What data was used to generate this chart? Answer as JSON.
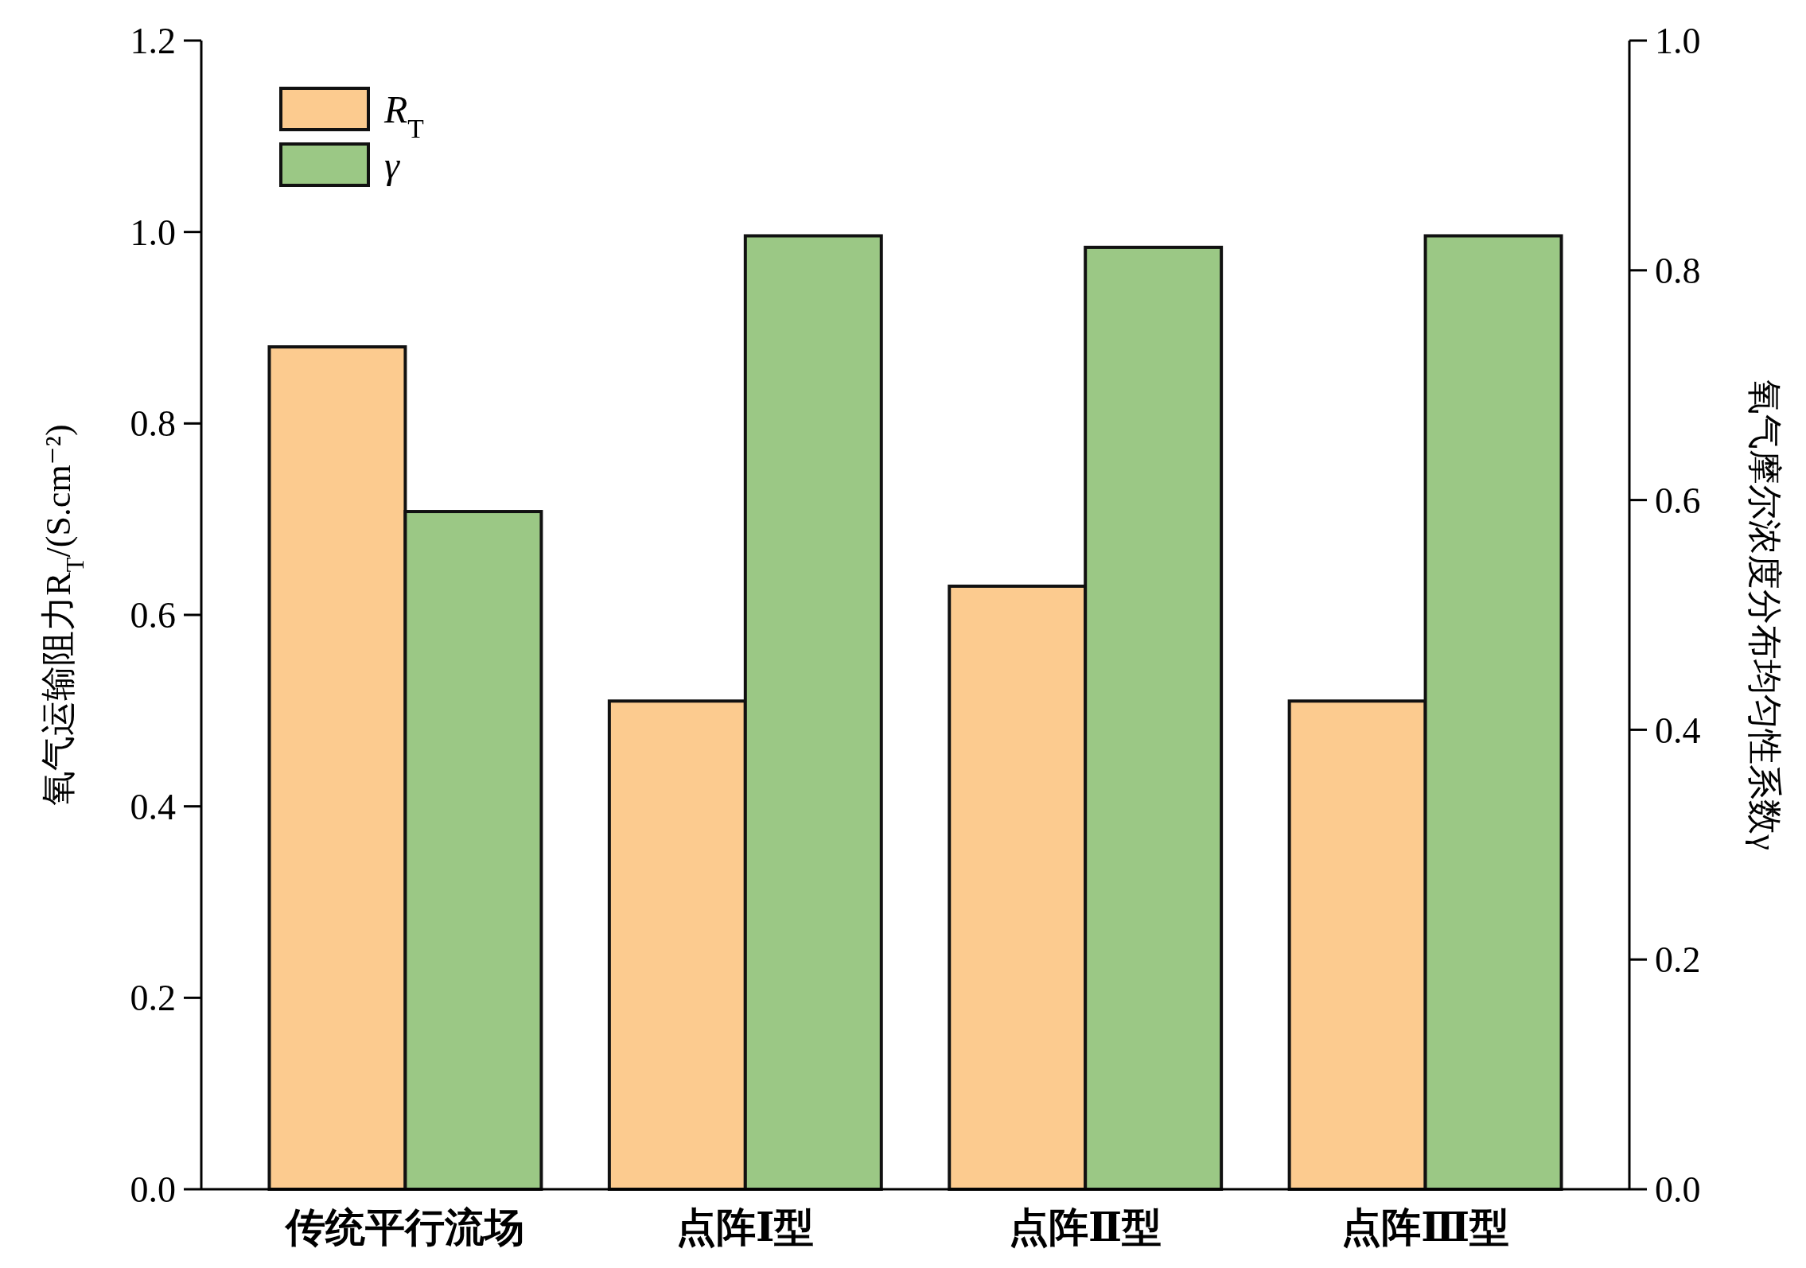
{
  "chart_data": {
    "type": "bar",
    "categories": [
      "传统平行流场",
      "点阵Ⅰ型",
      "点阵Ⅱ型",
      "点阵Ⅲ型"
    ],
    "ylabel": "氧气运输阻力R$_{T}$/(S.cm⁻²)",
    "y2label": "氧气摩尔浓度分布均匀性系数γ",
    "series": [
      {
        "name": "R$_{T}$",
        "color": "#fccb8f",
        "values": [
          0.88,
          0.51,
          0.63,
          0.51
        ]
      },
      {
        "name": "γ",
        "color": "#9bc885",
        "values": [
          0.59,
          0.83,
          0.82,
          0.83
        ],
        "axis": "y2"
      }
    ],
    "ylim": [
      0,
      1.2
    ],
    "yticks": [
      {
        "value": 0,
        "label": "0.0"
      },
      {
        "value": 0.2,
        "label": "0.2"
      },
      {
        "value": 0.4,
        "label": "0.4"
      },
      {
        "value": 0.6,
        "label": "0.6"
      },
      {
        "value": 0.8,
        "label": "0.8"
      },
      {
        "value": 1,
        "label": "1.0"
      },
      {
        "value": 1.2,
        "label": "1.2"
      }
    ],
    "y2lim": [
      0,
      1
    ],
    "y2ticks": [
      {
        "value": 0,
        "label": "0.0"
      },
      {
        "value": 0.2,
        "label": "0.2"
      },
      {
        "value": 0.4,
        "label": "0.4"
      },
      {
        "value": 0.6,
        "label": "0.6"
      },
      {
        "value": 0.8,
        "label": "0.8"
      },
      {
        "value": 1,
        "label": "1.0"
      }
    ],
    "legend": "top left",
    "grid": false
  }
}
